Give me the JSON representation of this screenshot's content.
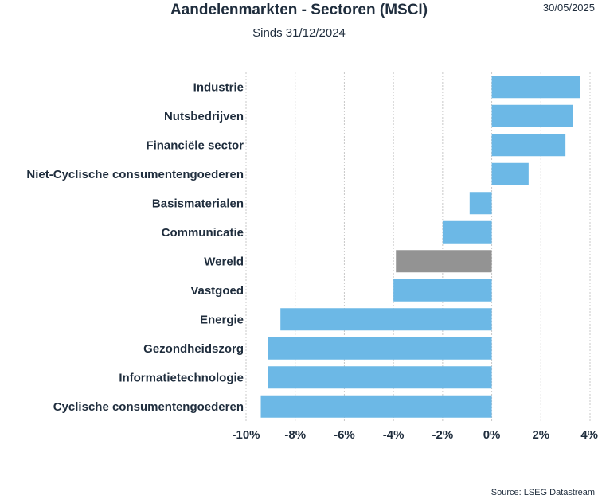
{
  "header": {
    "title": "Aandelenmarkten - Sectoren (MSCI)",
    "subtitle": "Sinds 31/12/2024",
    "date": "30/05/2025"
  },
  "footer": {
    "source": "Source: LSEG Datastream"
  },
  "chart_data": {
    "type": "bar",
    "orientation": "horizontal",
    "title": "Aandelenmarkten - Sectoren (MSCI)",
    "subtitle": "Sinds 31/12/2024",
    "categories": [
      "Industrie",
      "Nutsbedrijven",
      "Financiële sector",
      "Niet-Cyclische consumentengoederen",
      "Basismaterialen",
      "Communicatie",
      "Wereld",
      "Vastgoed",
      "Energie",
      "Gezondheidszorg",
      "Informatietechnologie",
      "Cyclische consumentengoederen"
    ],
    "values": [
      3.6,
      3.3,
      3.0,
      1.5,
      -0.9,
      -2.0,
      -3.9,
      -4.0,
      -8.6,
      -9.1,
      -9.1,
      -9.4
    ],
    "unit": "%",
    "xlim": [
      -10,
      4
    ],
    "ticks": [
      -10,
      -8,
      -6,
      -4,
      -2,
      0,
      2,
      4
    ],
    "tick_labels": [
      "-10%",
      "-8%",
      "-6%",
      "-4%",
      "-2%",
      "0%",
      "2%",
      "4%"
    ],
    "grid": true,
    "colors": {
      "bar": "#6cb8e6",
      "highlight": "#939393",
      "grid": "#c8c8c8",
      "text": "#1f2d3d"
    },
    "highlight_category": "Wereld"
  }
}
